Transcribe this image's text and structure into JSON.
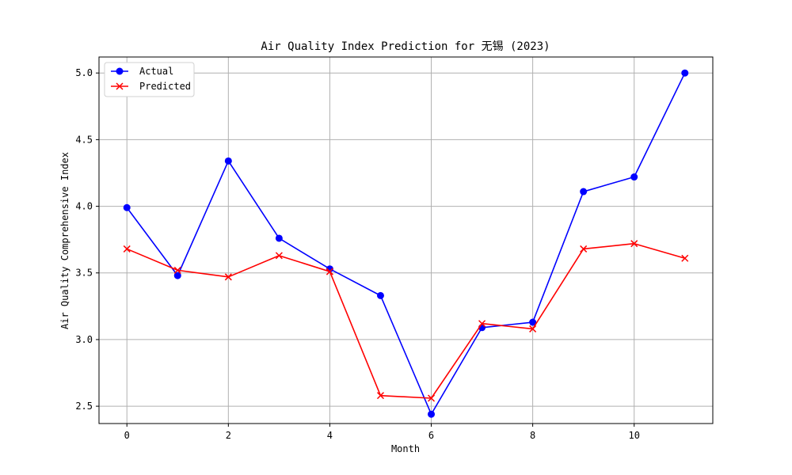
{
  "chart_data": {
    "type": "line",
    "title": "Air Quality Index Prediction for 无锡 (2023)",
    "xlabel": "Month",
    "ylabel": "Air Quality Comprehensive Index",
    "x": [
      0,
      1,
      2,
      3,
      4,
      5,
      6,
      7,
      8,
      9,
      10,
      11
    ],
    "xlim": [
      -0.55,
      11.55
    ],
    "ylim": [
      2.37,
      5.12
    ],
    "xticks": [
      0,
      2,
      4,
      6,
      8,
      10
    ],
    "yticks": [
      2.5,
      3.0,
      3.5,
      4.0,
      4.5,
      5.0
    ],
    "xtick_labels": [
      "0",
      "2",
      "4",
      "6",
      "8",
      "10"
    ],
    "ytick_labels": [
      "2.5",
      "3.0",
      "3.5",
      "4.0",
      "4.5",
      "5.0"
    ],
    "grid": true,
    "legend_position": "top-left",
    "series": [
      {
        "name": "Actual",
        "color": "#0000ff",
        "marker": "circle",
        "values": [
          3.99,
          3.48,
          4.34,
          3.76,
          3.53,
          3.33,
          2.44,
          3.09,
          3.13,
          4.11,
          4.22,
          5.0
        ]
      },
      {
        "name": "Predicted",
        "color": "#ff0000",
        "marker": "x",
        "values": [
          3.68,
          3.52,
          3.47,
          3.63,
          3.51,
          2.58,
          2.56,
          3.12,
          3.08,
          3.68,
          3.72,
          3.61
        ]
      }
    ]
  }
}
